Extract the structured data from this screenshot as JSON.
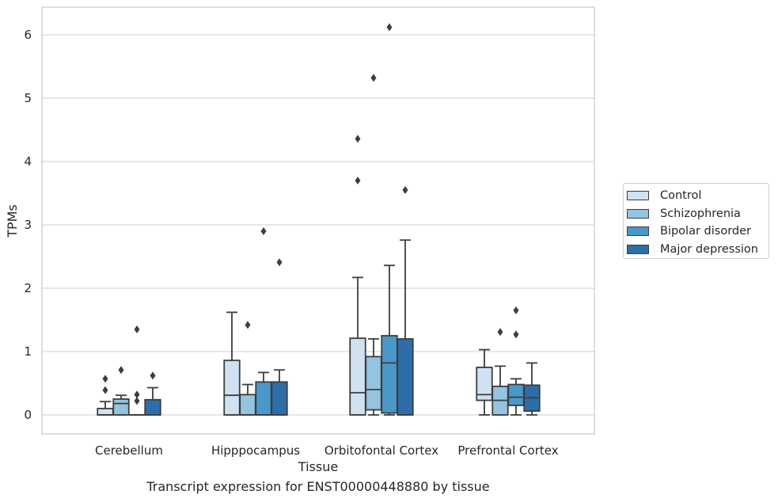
{
  "caption": "Transcript expression for ENST00000448880 by tissue",
  "chart_data": {
    "type": "box",
    "title": "",
    "xlabel": "Tissue",
    "ylabel": "TPMs",
    "ylim": [
      -0.3,
      6.45
    ],
    "yticks": [
      0,
      1,
      2,
      3,
      4,
      5,
      6
    ],
    "ytick_labels": [
      "0",
      "1",
      "2",
      "3",
      "4",
      "5",
      "6"
    ],
    "grid": "horizontal",
    "legend_position": "right",
    "categories": [
      "Cerebellum",
      "Hipppocampus",
      "Orbitofontal Cortex",
      "Prefrontal Cortex"
    ],
    "series": [
      {
        "name": "Control",
        "color": "#d0e1f2",
        "boxes": [
          {
            "whislo": 0,
            "q1": 0,
            "med": 0,
            "q3": 0.1,
            "whishi": 0.21,
            "fliers": [
              0.39,
              0.57
            ]
          },
          {
            "whislo": 0,
            "q1": 0,
            "med": 0.31,
            "q3": 0.86,
            "whishi": 1.62,
            "fliers": []
          },
          {
            "whislo": 0,
            "q1": 0,
            "med": 0.35,
            "q3": 1.21,
            "whishi": 2.17,
            "fliers": [
              3.7,
              4.36
            ]
          },
          {
            "whislo": 0,
            "q1": 0.23,
            "med": 0.32,
            "q3": 0.75,
            "whishi": 1.03,
            "fliers": []
          }
        ]
      },
      {
        "name": "Schizophrenia",
        "color": "#94c4df",
        "boxes": [
          {
            "whislo": 0,
            "q1": 0,
            "med": 0.18,
            "q3": 0.25,
            "whishi": 0.31,
            "fliers": [
              0.71
            ]
          },
          {
            "whislo": 0,
            "q1": 0,
            "med": 0,
            "q3": 0.32,
            "whishi": 0.48,
            "fliers": [
              1.42
            ]
          },
          {
            "whislo": 0,
            "q1": 0.08,
            "med": 0.4,
            "q3": 0.92,
            "whishi": 1.2,
            "fliers": [
              5.32
            ]
          },
          {
            "whislo": 0,
            "q1": 0,
            "med": 0.23,
            "q3": 0.45,
            "whishi": 0.77,
            "fliers": [
              1.31
            ]
          }
        ]
      },
      {
        "name": "Bipolar disorder",
        "color": "#4a98c9",
        "boxes": [
          {
            "whislo": 0,
            "q1": 0,
            "med": 0,
            "q3": 0,
            "whishi": 0,
            "fliers": [
              0.22,
              0.32,
              1.35
            ]
          },
          {
            "whislo": 0,
            "q1": 0,
            "med": 0,
            "q3": 0.52,
            "whishi": 0.67,
            "fliers": [
              2.9
            ]
          },
          {
            "whislo": 0,
            "q1": 0.03,
            "med": 0.82,
            "q3": 1.25,
            "whishi": 2.36,
            "fliers": [
              6.12
            ]
          },
          {
            "whislo": 0,
            "q1": 0.15,
            "med": 0.28,
            "q3": 0.48,
            "whishi": 0.57,
            "fliers": [
              1.27,
              1.65
            ]
          }
        ]
      },
      {
        "name": "Major depression",
        "color": "#2d6eaa",
        "boxes": [
          {
            "whislo": 0,
            "q1": 0,
            "med": 0,
            "q3": 0.24,
            "whishi": 0.43,
            "fliers": [
              0.62
            ]
          },
          {
            "whislo": 0,
            "q1": 0,
            "med": 0,
            "q3": 0.52,
            "whishi": 0.71,
            "fliers": [
              2.41
            ]
          },
          {
            "whislo": 0,
            "q1": 0,
            "med": 0,
            "q3": 1.2,
            "whishi": 2.76,
            "fliers": [
              3.55
            ]
          },
          {
            "whislo": 0,
            "q1": 0.06,
            "med": 0.27,
            "q3": 0.47,
            "whishi": 0.82,
            "fliers": []
          }
        ]
      }
    ]
  }
}
